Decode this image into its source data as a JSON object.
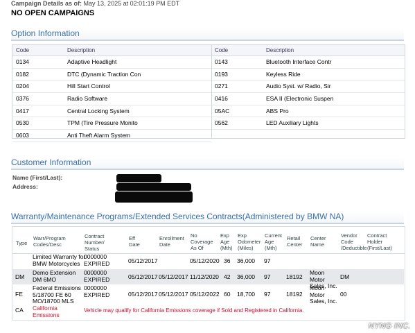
{
  "header": {
    "campaign_label": "Campaign Details as of:",
    "campaign_date": "May 13, 2025 at 02:01:19 PM EDT",
    "status": "NO OPEN CAMPAIGNS"
  },
  "options": {
    "title": "Option Information",
    "col_code": "Code",
    "col_desc": "Description",
    "left": [
      {
        "code": "0134",
        "desc": "Adaptive Headlight"
      },
      {
        "code": "0182",
        "desc": "DTC (Dynamic Traction Con"
      },
      {
        "code": "0204",
        "desc": "Hill Start Control"
      },
      {
        "code": "0376",
        "desc": "Radio Software"
      },
      {
        "code": "0417",
        "desc": "Central Locking System"
      },
      {
        "code": "0530",
        "desc": "TPM (Tire Pressure Monito"
      },
      {
        "code": "0603",
        "desc": "Anti Theft Alarm System"
      }
    ],
    "right": [
      {
        "code": "0143",
        "desc": "Bluetooth Interface Contr"
      },
      {
        "code": "0193",
        "desc": "Keyless Ride"
      },
      {
        "code": "0271",
        "desc": "Audio Syst. w/ Radio, Sir"
      },
      {
        "code": "0416",
        "desc": "ESA II (Electronic Suspen"
      },
      {
        "code": "05AC",
        "desc": "ABS Pro"
      },
      {
        "code": "0562",
        "desc": "LED Auxiliary Lights"
      }
    ]
  },
  "customer": {
    "title": "Customer Information",
    "name_label": "Name (First/Last):",
    "address_label": "Address:"
  },
  "warranty": {
    "title": "Warranty/Maintenance Programs/Extended Services Contracts(Administered by BMW NA)",
    "headers": {
      "type": "Type",
      "codes": "Warr/Program\nCodes/Desc",
      "contract": "Contract\nNumber/\nStatus",
      "eff": "Eff\nDate",
      "enroll": "Enrollment\nDate",
      "nocov": "No\nCoverage\nAs Of",
      "expage": "Exp\nAge\n(Mth)",
      "expodo": "Exp\nOdometer\n(Miles)",
      "curage": "Current\nAge\n(Mth)",
      "retail": "Retail\nCenter",
      "center": "Center\nName",
      "vendor": "Vendor\nCode\n/Deductible",
      "holder": "Contract\nHolder\n(First/Last)"
    },
    "rows": [
      {
        "type": "",
        "codes": "Limited Warranty for\nBMW Motorcycles",
        "contract": "0000000\nEXPIRED",
        "eff": "05/12/2017",
        "enroll": "",
        "nocov": "05/12/2020",
        "expage": "36",
        "expodo": "36,000",
        "curage": "97",
        "retail": "",
        "center": "",
        "vendor": ""
      },
      {
        "type": "DM",
        "codes": "Demo Extension\nDM 6MO",
        "contract": "0000000\nEXPIRED",
        "eff": "05/12/2017",
        "enroll": "05/12/2017",
        "nocov": "11/12/2020",
        "expage": "42",
        "expodo": "36,000",
        "curage": "97",
        "retail": "18192",
        "center": "Moon\nMotor\nSales, Inc.",
        "vendor": "DM"
      },
      {
        "type": "FE",
        "codes": "Federal Emissions\n5/18700 FE 60\nMO/18700 MLS",
        "contract": "0000000\nEXPIRED",
        "eff": "05/12/2017",
        "enroll": "05/12/2017",
        "nocov": "05/12/2022",
        "expage": "60",
        "expodo": "18,700",
        "curage": "97",
        "retail": "18192",
        "center": "Moon\nMotor\nSales, Inc.",
        "vendor": "00"
      }
    ],
    "ca_row": {
      "type": "CA",
      "codes": "California\nEmissions",
      "note": "Vehicle may qualify for California Emissions coverage if Sold and Registered in California."
    }
  },
  "watermark": "NYNG INC.",
  "colors": {
    "section_title": "#3b6fa8",
    "shaded_row": "#e6e8eb",
    "alert_red": "#c8102e"
  }
}
